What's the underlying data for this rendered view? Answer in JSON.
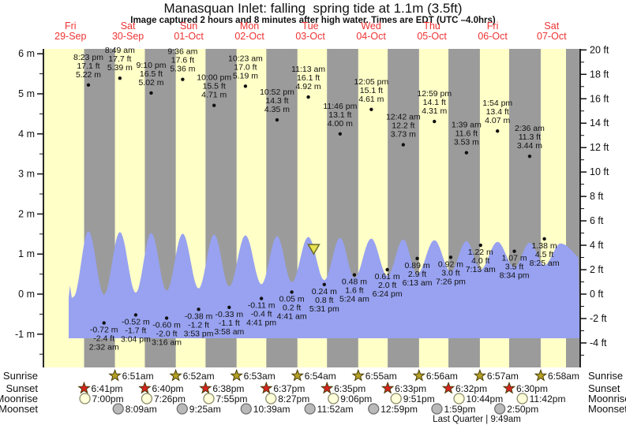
{
  "title": "Manasquan Inlet: falling  spring tide at 1.1m (3.5ft)",
  "subtitle": "Image captured 2 hours and 8 minutes after high water. Times are EDT (UTC –4.0hrs)",
  "colors": {
    "day_band": "#ffffc8",
    "night_band": "#9b9b9b",
    "water": "#98a2f0",
    "day_label": "#ee3333",
    "axis": "#111111",
    "annotation": "#111111",
    "marker_fill": "#e6e24e",
    "marker_stroke": "#6b6b2a",
    "sunrise_star": "#b3a125",
    "sunset_star": "#d8231f",
    "star_stroke": "#4a3c08",
    "moonrise_fill": "#ffffd9",
    "moonrise_stroke": "#8a8a6a",
    "moonset_fill": "#b9b9b9",
    "moonset_stroke": "#6f6f6f"
  },
  "chart_data": {
    "type": "area",
    "title": "Manasquan Inlet: falling  spring tide at 1.1m (3.5ft)",
    "left_axis_unit": "m",
    "right_axis_unit": "ft",
    "left_ticks_m": [
      6,
      5,
      4,
      3,
      2,
      1,
      0,
      -1
    ],
    "right_ticks_ft": [
      20,
      18,
      16,
      14,
      12,
      10,
      8,
      6,
      4,
      2,
      0,
      -2,
      -4
    ],
    "days": [
      {
        "label": "Fri",
        "date": "29-Sep"
      },
      {
        "label": "Sat",
        "date": "30-Sep"
      },
      {
        "label": "Sun",
        "date": "01-Oct"
      },
      {
        "label": "Mon",
        "date": "02-Oct"
      },
      {
        "label": "Tue",
        "date": "03-Oct"
      },
      {
        "label": "Wed",
        "date": "04-Oct"
      },
      {
        "label": "Thu",
        "date": "05-Oct"
      },
      {
        "label": "Fri",
        "date": "06-Oct"
      },
      {
        "label": "Sat",
        "date": "07-Oct"
      }
    ],
    "tide_events": [
      {
        "type": "high",
        "day": 0,
        "time": "8:23 pm",
        "ft": "17.1",
        "m": "5.22"
      },
      {
        "type": "low",
        "day": 1,
        "time": "2:32 am",
        "ft": "-2.4",
        "m": "-0.72"
      },
      {
        "type": "high",
        "day": 1,
        "time": "8:49 am",
        "ft": "17.7",
        "m": "5.39"
      },
      {
        "type": "low",
        "day": 1,
        "time": "3:04 pm",
        "ft": "-1.7",
        "m": "-0.52"
      },
      {
        "type": "high",
        "day": 1,
        "time": "9:10 pm",
        "ft": "16.5",
        "m": "5.02"
      },
      {
        "type": "low",
        "day": 2,
        "time": "3:16 am",
        "ft": "-2.0",
        "m": "-0.60"
      },
      {
        "type": "high",
        "day": 2,
        "time": "9:36 am",
        "ft": "17.6",
        "m": "5.36"
      },
      {
        "type": "low",
        "day": 2,
        "time": "3:53 pm",
        "ft": "-1.2",
        "m": "-0.38"
      },
      {
        "type": "high",
        "day": 2,
        "time": "10:00 pm",
        "ft": "15.5",
        "m": "4.71"
      },
      {
        "type": "low",
        "day": 3,
        "time": "3:58 am",
        "ft": "-1.1",
        "m": "-0.33"
      },
      {
        "type": "high",
        "day": 3,
        "time": "10:23 am",
        "ft": "17.0",
        "m": "5.19"
      },
      {
        "type": "low",
        "day": 3,
        "time": "4:41 pm",
        "ft": "-0.4",
        "m": "-0.11"
      },
      {
        "type": "high",
        "day": 3,
        "time": "10:52 pm",
        "ft": "14.3",
        "m": "4.35"
      },
      {
        "type": "low",
        "day": 4,
        "time": "4:41 am",
        "ft": "0.2",
        "m": "0.05"
      },
      {
        "type": "high",
        "day": 4,
        "time": "11:13 am",
        "ft": "16.1",
        "m": "4.92"
      },
      {
        "type": "low",
        "day": 4,
        "time": "5:31 pm",
        "ft": "0.8",
        "m": "0.24"
      },
      {
        "type": "high",
        "day": 4,
        "time": "11:46 pm",
        "ft": "13.1",
        "m": "4.00"
      },
      {
        "type": "low",
        "day": 5,
        "time": "5:24 am",
        "ft": "1.6",
        "m": "0.48"
      },
      {
        "type": "high",
        "day": 5,
        "time": "12:05 pm",
        "ft": "15.1",
        "m": "4.61"
      },
      {
        "type": "low",
        "day": 5,
        "time": "6:24 pm",
        "ft": "2.0",
        "m": "0.61"
      },
      {
        "type": "high",
        "day": 6,
        "time": "12:42 am",
        "ft": "12.2",
        "m": "3.73"
      },
      {
        "type": "low",
        "day": 6,
        "time": "6:13 am",
        "ft": "2.9",
        "m": "0.89"
      },
      {
        "type": "high",
        "day": 6,
        "time": "12:59 pm",
        "ft": "14.1",
        "m": "4.31"
      },
      {
        "type": "low",
        "day": 6,
        "time": "7:26 pm",
        "ft": "3.0",
        "m": "0.92"
      },
      {
        "type": "high",
        "day": 7,
        "time": "1:39 am",
        "ft": "11.6",
        "m": "3.53"
      },
      {
        "type": "low",
        "day": 7,
        "time": "7:13 am",
        "ft": "4.0",
        "m": "1.22"
      },
      {
        "type": "high",
        "day": 7,
        "time": "1:54 pm",
        "ft": "13.4",
        "m": "4.07"
      },
      {
        "type": "low",
        "day": 7,
        "time": "8:34 pm",
        "ft": "3.5",
        "m": "1.07"
      },
      {
        "type": "high",
        "day": 8,
        "time": "2:36 am",
        "ft": "11.3",
        "m": "3.44"
      },
      {
        "type": "low",
        "day": 8,
        "time": "8:25 am",
        "ft": "4.5",
        "m": "1.38"
      }
    ],
    "current_marker": {
      "day": 4,
      "time": "1:21 pm",
      "height_m": 1.1
    }
  },
  "astro": {
    "rows": [
      {
        "label": "Sunrise",
        "icon": "sunrise-star",
        "events": [
          {
            "day": 1,
            "time": "6:51am"
          },
          {
            "day": 2,
            "time": "6:52am"
          },
          {
            "day": 3,
            "time": "6:53am"
          },
          {
            "day": 4,
            "time": "6:54am"
          },
          {
            "day": 5,
            "time": "6:55am"
          },
          {
            "day": 6,
            "time": "6:56am"
          },
          {
            "day": 7,
            "time": "6:57am"
          },
          {
            "day": 8,
            "time": "6:58am"
          }
        ]
      },
      {
        "label": "Sunset",
        "icon": "sunset-star",
        "events": [
          {
            "day": 0,
            "time": "6:41pm"
          },
          {
            "day": 1,
            "time": "6:40pm"
          },
          {
            "day": 2,
            "time": "6:38pm"
          },
          {
            "day": 3,
            "time": "6:37pm"
          },
          {
            "day": 4,
            "time": "6:35pm"
          },
          {
            "day": 5,
            "time": "6:33pm"
          },
          {
            "day": 6,
            "time": "6:32pm"
          },
          {
            "day": 7,
            "time": "6:30pm"
          }
        ]
      },
      {
        "label": "Moonrise",
        "icon": "moonrise-circle",
        "events": [
          {
            "day": 0,
            "time": "7:00pm"
          },
          {
            "day": 1,
            "time": "7:26pm"
          },
          {
            "day": 2,
            "time": "7:55pm"
          },
          {
            "day": 3,
            "time": "8:27pm"
          },
          {
            "day": 4,
            "time": "9:06pm"
          },
          {
            "day": 5,
            "time": "9:51pm"
          },
          {
            "day": 6,
            "time": "10:44pm"
          },
          {
            "day": 7,
            "time": "11:42pm"
          }
        ]
      },
      {
        "label": "Moonset",
        "icon": "moonset-circle",
        "events": [
          {
            "day": 1,
            "time": "8:09am"
          },
          {
            "day": 2,
            "time": "9:25am"
          },
          {
            "day": 3,
            "time": "10:39am"
          },
          {
            "day": 4,
            "time": "11:52am"
          },
          {
            "day": 5,
            "time": "12:59pm"
          },
          {
            "day": 6,
            "time": "1:59pm"
          },
          {
            "day": 7,
            "time": "2:50pm"
          }
        ]
      }
    ],
    "moon_phase": "Last Quarter | 9:49am"
  }
}
